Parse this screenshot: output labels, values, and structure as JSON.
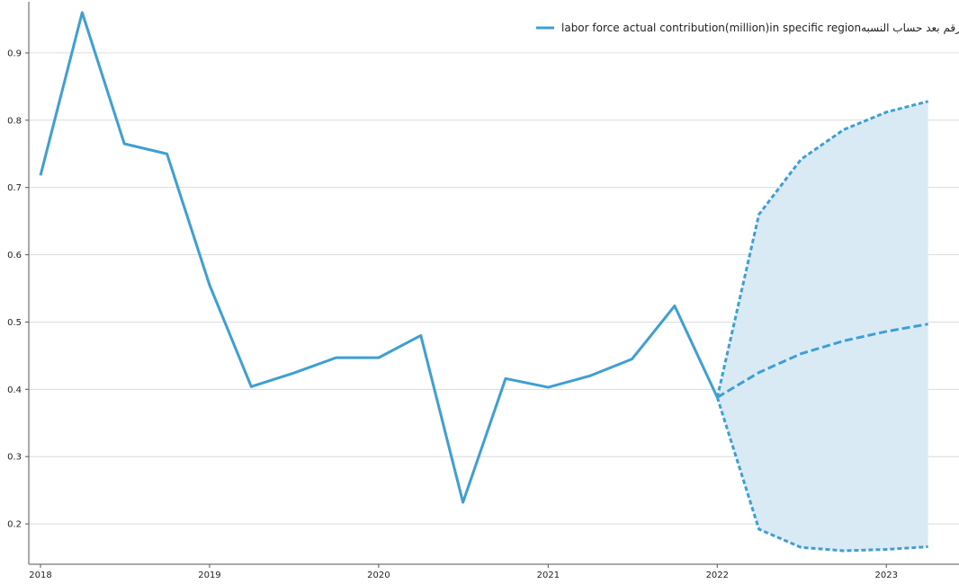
{
  "chart_data": {
    "type": "line",
    "x_axis": {
      "type": "time",
      "ticks": [
        "2018",
        "2019",
        "2020",
        "2021",
        "2022",
        "2023"
      ],
      "range": [
        "2018-01-01",
        "2023-06-01"
      ]
    },
    "y_axis": {
      "ticks": [
        "0.2",
        "0.3",
        "0.4",
        "0.5",
        "0.6",
        "0.7",
        "0.8",
        "0.9"
      ],
      "range": [
        0.14,
        0.96
      ]
    },
    "grid": {
      "horizontal": true,
      "vertical": false
    },
    "legend": {
      "position": "top-right",
      "entries": [
        "labor force actual contribution(million)in specific regionالرقم بعد حساب النسبه"
      ]
    },
    "colors": {
      "line": "#3d9fd3",
      "band": "#d9eaf5",
      "grid": "#dcdcdc",
      "axis": "#555555"
    },
    "series": [
      {
        "name": "labor force actual contribution(million)in specific regionالرقم بعد حساب النسبه",
        "style": "solid",
        "x": [
          "2018-01-01",
          "2018-04-01",
          "2018-07-01",
          "2018-10-01",
          "2019-01-01",
          "2019-04-01",
          "2019-07-01",
          "2019-10-01",
          "2020-01-01",
          "2020-04-01",
          "2020-07-01",
          "2020-10-01",
          "2021-01-01",
          "2021-04-01",
          "2021-07-01",
          "2021-10-01",
          "2022-01-01"
        ],
        "y": [
          0.718,
          0.96,
          0.765,
          0.75,
          0.555,
          0.404,
          0.424,
          0.447,
          0.447,
          0.48,
          0.232,
          0.416,
          0.403,
          0.42,
          0.445,
          0.524,
          0.388
        ]
      },
      {
        "role": "forecast",
        "style": "dashed",
        "x": [
          "2022-01-01",
          "2022-04-01",
          "2022-07-01",
          "2022-10-01",
          "2023-01-01",
          "2023-04-01"
        ],
        "y": [
          0.388,
          0.425,
          0.453,
          0.472,
          0.486,
          0.497
        ]
      },
      {
        "role": "upper-bound",
        "style": "dotted",
        "x": [
          "2022-01-01",
          "2022-04-01",
          "2022-07-01",
          "2022-10-01",
          "2023-01-01",
          "2023-04-01"
        ],
        "y": [
          0.388,
          0.66,
          0.742,
          0.786,
          0.812,
          0.828
        ]
      },
      {
        "role": "lower-bound",
        "style": "dotted",
        "x": [
          "2022-01-01",
          "2022-04-01",
          "2022-07-01",
          "2022-10-01",
          "2023-01-01",
          "2023-04-01"
        ],
        "y": [
          0.388,
          0.192,
          0.165,
          0.16,
          0.162,
          0.166
        ]
      }
    ]
  }
}
